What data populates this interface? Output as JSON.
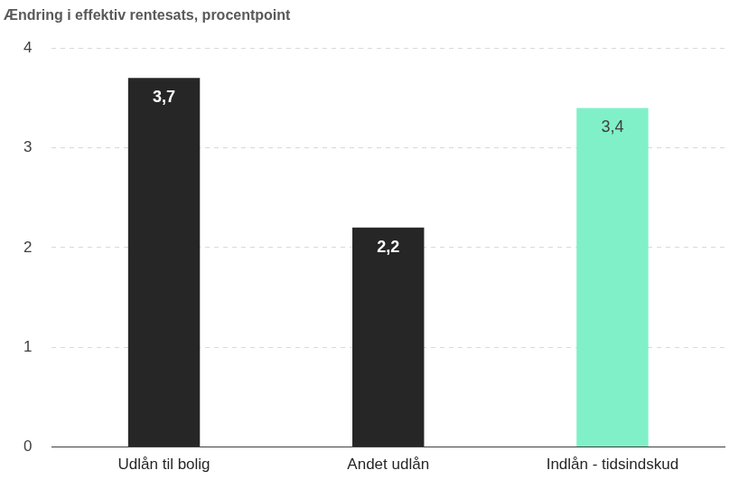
{
  "chart_data": {
    "type": "bar",
    "ylabel": "Ændring i effektiv rentesats, procentpoint",
    "categories": [
      "Udlån til bolig",
      "Andet udlån",
      "Indlån - tidsindskud"
    ],
    "values": [
      3.7,
      2.2,
      3.4
    ],
    "value_labels": [
      "3,7",
      "2,2",
      "3,4"
    ],
    "colors": [
      "#262626",
      "#262626",
      "#80F0C8"
    ],
    "ylim": [
      0,
      4
    ],
    "yticks": [
      0,
      1,
      2,
      3,
      4
    ],
    "grid": true,
    "data_labels": true
  }
}
